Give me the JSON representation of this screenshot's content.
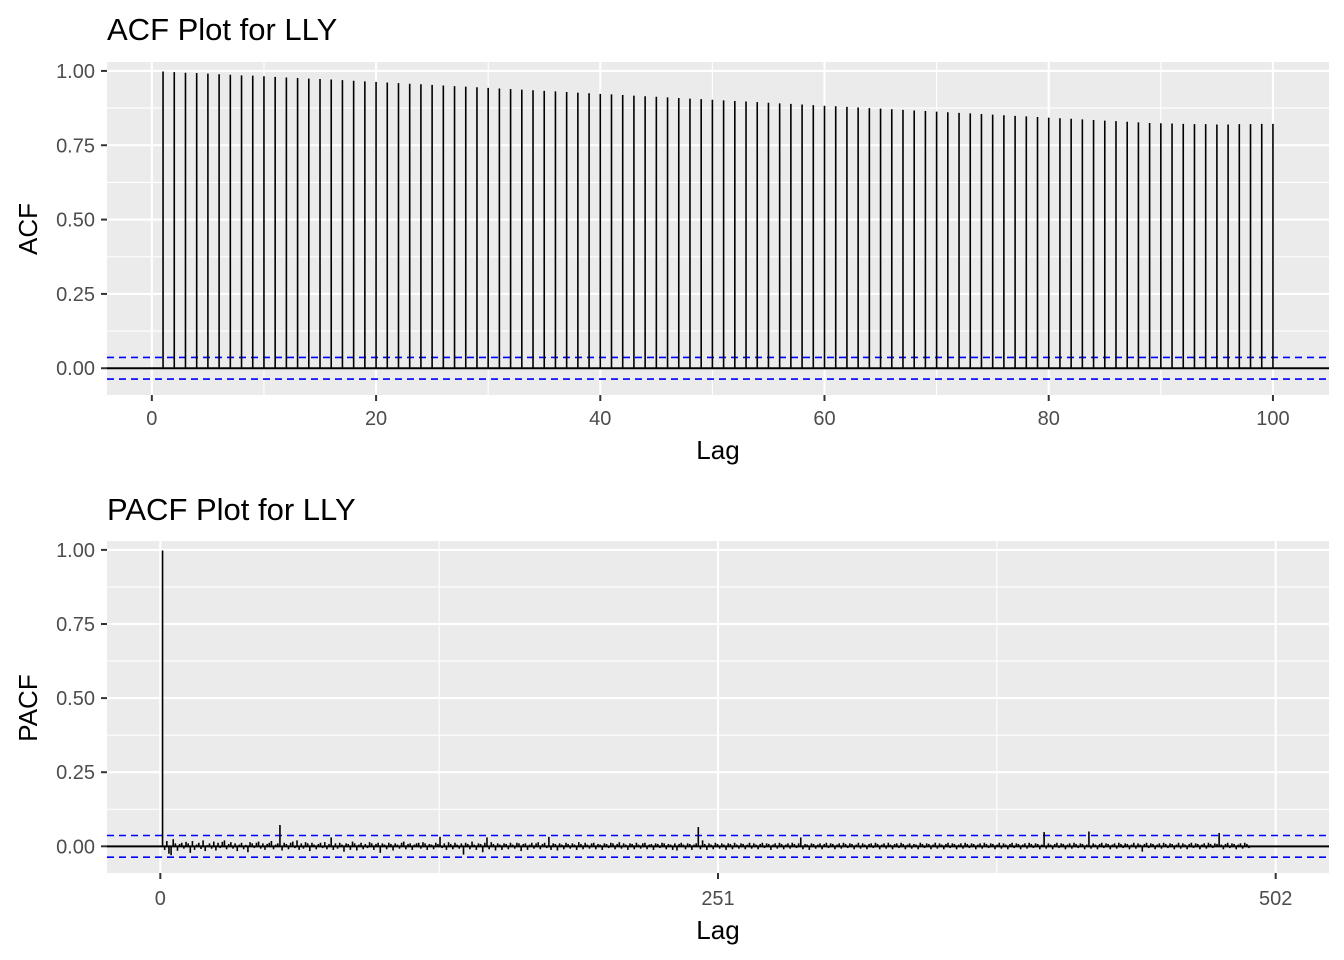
{
  "colors": {
    "panel_background": "#ebebeb",
    "grid": "#ffffff",
    "stem": "#000000",
    "confidence_bound": "#0000ff",
    "tick_text": "#4d4d4d"
  },
  "chart_data": [
    {
      "type": "bar",
      "subtype": "stem",
      "title": "ACF Plot for LLY",
      "xlabel": "Lag",
      "ylabel": "ACF",
      "xlim": [
        -4,
        105
      ],
      "ylim": [
        -0.09,
        1.03
      ],
      "x_ticks": [
        0,
        20,
        40,
        60,
        80,
        100
      ],
      "x_tick_labels": [
        "0",
        "20",
        "40",
        "60",
        "80",
        "100"
      ],
      "y_ticks": [
        0,
        0.25,
        0.5,
        0.75,
        1.0
      ],
      "y_tick_labels": [
        "0.00",
        "0.25",
        "0.50",
        "0.75",
        "1.00"
      ],
      "grid": true,
      "legend": "none",
      "confidence_bound": 0.0365,
      "lag_start": 1,
      "lag_end": 100,
      "values": [
        0.998,
        0.996,
        0.994,
        0.993,
        0.991,
        0.989,
        0.987,
        0.985,
        0.984,
        0.982,
        0.98,
        0.978,
        0.976,
        0.974,
        0.973,
        0.971,
        0.969,
        0.967,
        0.965,
        0.963,
        0.961,
        0.959,
        0.957,
        0.955,
        0.953,
        0.951,
        0.949,
        0.947,
        0.945,
        0.943,
        0.941,
        0.939,
        0.937,
        0.935,
        0.933,
        0.931,
        0.929,
        0.927,
        0.925,
        0.923,
        0.921,
        0.919,
        0.917,
        0.915,
        0.913,
        0.911,
        0.909,
        0.907,
        0.905,
        0.903,
        0.901,
        0.899,
        0.897,
        0.895,
        0.893,
        0.891,
        0.889,
        0.887,
        0.885,
        0.883,
        0.881,
        0.879,
        0.877,
        0.875,
        0.873,
        0.871,
        0.869,
        0.867,
        0.865,
        0.863,
        0.861,
        0.859,
        0.857,
        0.855,
        0.853,
        0.851,
        0.849,
        0.847,
        0.845,
        0.843,
        0.841,
        0.839,
        0.837,
        0.835,
        0.833,
        0.831,
        0.829,
        0.827,
        0.825,
        0.824,
        0.823,
        0.822,
        0.821,
        0.821,
        0.82,
        0.82,
        0.821,
        0.821,
        0.822,
        0.822
      ]
    },
    {
      "type": "bar",
      "subtype": "stem",
      "title": "PACF Plot for LLY",
      "xlabel": "Lag",
      "ylabel": "PACF",
      "xlim": [
        -24,
        526
      ],
      "ylim": [
        -0.09,
        1.03
      ],
      "x_ticks": [
        0,
        251,
        502
      ],
      "x_tick_labels": [
        "0",
        "251",
        "502"
      ],
      "y_ticks": [
        0,
        0.25,
        0.5,
        0.75,
        1.0
      ],
      "y_tick_labels": [
        "0.00",
        "0.25",
        "0.50",
        "0.75",
        "1.00"
      ],
      "grid": true,
      "legend": "none",
      "confidence_bound": 0.0365,
      "lag_start": 1,
      "lag_end": 490,
      "values_note_free": true,
      "values": [
        0.998,
        -0.012,
        0.018,
        -0.025,
        -0.03,
        0.024,
        0.01,
        -0.015,
        0.008,
        0.012,
        -0.008,
        0.015,
        0.01,
        -0.022,
        0.018,
        -0.012,
        0.006,
        0.012,
        -0.009,
        0.02,
        -0.016,
        0.004,
        0.01,
        -0.008,
        0.016,
        -0.014,
        0.012,
        -0.006,
        0.015,
        0.02,
        -0.01,
        0.008,
        0.014,
        -0.008,
        0.01,
        -0.016,
        0.006,
        0.012,
        -0.01,
        0.005,
        -0.02,
        0.014,
        0.01,
        -0.006,
        0.012,
        0.016,
        -0.008,
        0.01,
        -0.012,
        0.008,
        0.012,
        0.018,
        -0.01,
        0.006,
        0.01,
        0.072,
        -0.014,
        0.012,
        0.008,
        -0.01,
        0.012,
        0.016,
        -0.006,
        0.02,
        -0.012,
        0.01,
        -0.008,
        0.014,
        0.01,
        -0.016,
        0.012,
        0.006,
        -0.01,
        0.008,
        0.012,
        -0.006,
        0.014,
        -0.01,
        0.008,
        0.03,
        -0.012,
        0.01,
        -0.008,
        0.012,
        0.006,
        -0.018,
        0.01,
        0.008,
        -0.012,
        0.016,
        0.01,
        -0.014,
        0.006,
        0.012,
        -0.01,
        0.008,
        -0.006,
        0.014,
        0.01,
        -0.012,
        0.008,
        0.012,
        -0.022,
        0.01,
        0.006,
        -0.01,
        0.012,
        0.008,
        -0.014,
        0.01,
        0.006,
        -0.008,
        0.012,
        0.016,
        -0.01,
        0.008,
        0.01,
        -0.012,
        0.006,
        0.01,
        0.012,
        -0.008,
        0.014,
        0.01,
        -0.012,
        0.008,
        0.006,
        -0.01,
        0.012,
        0.008,
        0.032,
        -0.006,
        0.01,
        -0.012,
        0.014,
        0.008,
        -0.01,
        0.012,
        0.006,
        -0.008,
        0.01,
        -0.028,
        0.012,
        0.008,
        -0.01,
        0.016,
        0.006,
        -0.012,
        0.01,
        0.008,
        -0.02,
        0.012,
        0.03,
        -0.01,
        0.014,
        0.008,
        -0.014,
        0.01,
        0.006,
        -0.012,
        0.01,
        0.008,
        -0.01,
        0.012,
        0.006,
        -0.008,
        0.012,
        0.01,
        -0.016,
        0.008,
        0.01,
        -0.012,
        0.006,
        0.012,
        -0.008,
        0.01,
        0.014,
        -0.01,
        0.008,
        0.012,
        -0.006,
        0.032,
        -0.012,
        0.01,
        0.008,
        -0.014,
        0.01,
        0.006,
        -0.01,
        0.012,
        0.008,
        -0.008,
        0.01,
        0.006,
        -0.012,
        0.014,
        0.008,
        -0.01,
        0.012,
        0.006,
        -0.008,
        0.01,
        0.012,
        -0.01,
        0.008,
        0.006,
        -0.012,
        0.01,
        0.008,
        -0.006,
        0.012,
        0.01,
        -0.01,
        0.008,
        0.014,
        -0.008,
        0.01,
        0.006,
        -0.012,
        0.01,
        0.008,
        -0.01,
        0.012,
        0.006,
        -0.008,
        0.01,
        0.012,
        -0.01,
        0.006,
        0.008,
        -0.012,
        0.01,
        0.008,
        -0.006,
        0.012,
        0.01,
        -0.01,
        0.008,
        0.006,
        -0.012,
        0.01,
        -0.014,
        0.008,
        0.012,
        0.006,
        -0.01,
        0.01,
        0.008,
        -0.012,
        0.006,
        0.01,
        0.065,
        -0.01,
        0.02,
        0.008,
        -0.012,
        0.01,
        0.006,
        -0.01,
        0.012,
        0.008,
        -0.008,
        0.01,
        0.006,
        -0.012,
        0.01,
        0.008,
        -0.01,
        0.012,
        0.006,
        -0.008,
        0.01,
        0.008,
        -0.01,
        0.006,
        0.012,
        -0.008,
        0.01,
        0.006,
        -0.01,
        0.008,
        0.012,
        -0.006,
        0.01,
        0.008,
        -0.012,
        0.006,
        0.01,
        -0.008,
        0.012,
        0.008,
        -0.01,
        0.006,
        0.01,
        -0.008,
        0.012,
        0.008,
        -0.006,
        0.01,
        0.03,
        -0.01,
        0.008,
        0.006,
        -0.012,
        0.01,
        0.008,
        -0.008,
        0.006,
        0.01,
        -0.01,
        0.008,
        0.012,
        -0.006,
        0.01,
        0.008,
        -0.01,
        0.006,
        0.01,
        -0.008,
        0.012,
        0.008,
        -0.006,
        0.01,
        0.008,
        -0.01,
        0.006,
        0.012,
        -0.008,
        0.01,
        0.006,
        -0.01,
        0.008,
        0.01,
        -0.006,
        0.012,
        0.008,
        -0.01,
        0.006,
        0.01,
        -0.008,
        0.012,
        0.006,
        -0.01,
        0.008,
        0.01,
        -0.006,
        0.012,
        0.008,
        -0.01,
        0.006,
        0.01,
        -0.008,
        0.008,
        0.006,
        -0.01,
        0.012,
        0.008,
        -0.006,
        0.01,
        0.008,
        -0.01,
        0.006,
        0.012,
        -0.008,
        0.01,
        0.006,
        -0.01,
        0.008,
        0.012,
        -0.006,
        0.01,
        0.008,
        -0.01,
        0.006,
        0.01,
        -0.008,
        0.012,
        0.008,
        -0.006,
        0.01,
        0.008,
        -0.01,
        0.006,
        0.01,
        -0.008,
        0.012,
        0.008,
        -0.006,
        0.01,
        0.008,
        -0.01,
        0.006,
        0.012,
        -0.008,
        0.01,
        0.006,
        -0.01,
        0.008,
        0.012,
        -0.006,
        0.01,
        0.008,
        -0.01,
        0.006,
        0.01,
        -0.008,
        0.012,
        0.008,
        -0.006,
        0.01,
        0.008,
        -0.01,
        0.006,
        0.048,
        -0.008,
        0.01,
        0.006,
        -0.01,
        0.008,
        0.012,
        -0.006,
        0.01,
        0.008,
        -0.01,
        0.006,
        0.01,
        -0.008,
        0.012,
        0.008,
        -0.006,
        0.01,
        0.008,
        -0.01,
        0.006,
        0.05,
        -0.008,
        0.01,
        0.006,
        -0.01,
        0.008,
        0.012,
        -0.006,
        0.01,
        0.008,
        -0.01,
        0.006,
        0.01,
        -0.008,
        0.012,
        0.008,
        -0.006,
        0.01,
        0.008,
        -0.01,
        0.006,
        0.012,
        -0.008,
        0.01,
        0.006,
        -0.018,
        0.008,
        0.012,
        -0.006,
        0.01,
        0.008,
        -0.01,
        0.006,
        0.01,
        -0.008,
        0.012,
        0.008,
        -0.006,
        0.01,
        0.008,
        -0.01,
        0.006,
        0.012,
        -0.008,
        0.01,
        0.006,
        -0.01,
        0.008,
        0.012,
        -0.006,
        0.01,
        0.008,
        -0.01,
        0.006,
        0.01,
        -0.008,
        0.012,
        0.008,
        -0.006,
        0.01,
        0.008,
        0.045,
        0.006,
        -0.01,
        0.008,
        0.012,
        -0.006,
        0.01,
        0.008,
        -0.01,
        0.006,
        0.01,
        -0.008,
        0.012,
        0.008,
        -0.006
      ]
    }
  ]
}
